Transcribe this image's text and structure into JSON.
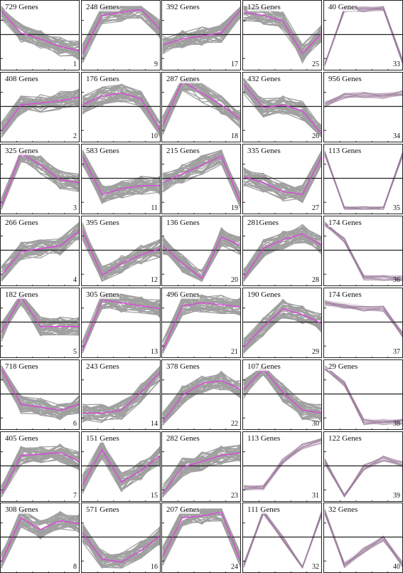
{
  "colors": {
    "cluster_line": "#a0a0a0",
    "centroid": "#e040e0",
    "density_line": "#9a7a9a",
    "axis": "#222222",
    "frame": "#222222"
  },
  "chart_data": {
    "type": "line",
    "layout_columns": 5,
    "layout_rows": 8,
    "timepoints": [
      1,
      2,
      3,
      4,
      5
    ],
    "ylim": [
      0,
      1
    ],
    "clusters": [
      {
        "id": "1",
        "genes_label": "729 Genes",
        "centroid": [
          0.92,
          0.55,
          0.45,
          0.32,
          0.25
        ],
        "style": "gray"
      },
      {
        "id": "9",
        "genes_label": "248 Genes",
        "centroid": [
          0.2,
          0.85,
          0.9,
          0.95,
          0.6
        ],
        "style": "gray"
      },
      {
        "id": "17",
        "genes_label": "392 Genes",
        "centroid": [
          0.35,
          0.45,
          0.5,
          0.55,
          0.95
        ],
        "style": "gray"
      },
      {
        "id": "25",
        "genes_label": "125 Genes",
        "centroid": [
          0.9,
          0.85,
          0.75,
          0.2,
          0.55
        ],
        "style": "gray"
      },
      {
        "id": "33",
        "genes_label": "40 Genes",
        "centroid": [
          0.0,
          0.95,
          0.95,
          0.98,
          0.05
        ],
        "style": "density"
      },
      {
        "id": "2",
        "genes_label": "408 Genes",
        "centroid": [
          0.1,
          0.55,
          0.58,
          0.62,
          0.68
        ],
        "style": "gray"
      },
      {
        "id": "10",
        "genes_label": "176 Genes",
        "centroid": [
          0.55,
          0.7,
          0.75,
          0.65,
          0.1
        ],
        "style": "gray"
      },
      {
        "id": "18",
        "genes_label": "287 Genes",
        "centroid": [
          0.2,
          0.95,
          0.75,
          0.55,
          0.3
        ],
        "style": "gray"
      },
      {
        "id": "26",
        "genes_label": "432 Genes",
        "centroid": [
          0.9,
          0.5,
          0.55,
          0.45,
          0.05
        ],
        "style": "gray"
      },
      {
        "id": "34",
        "genes_label": "956 Genes",
        "centroid": [
          0.55,
          0.7,
          0.72,
          0.7,
          0.75
        ],
        "style": "density"
      },
      {
        "id": "3",
        "genes_label": "325 Genes",
        "centroid": [
          0.05,
          0.95,
          0.75,
          0.5,
          0.45
        ],
        "style": "gray"
      },
      {
        "id": "11",
        "genes_label": "583 Genes",
        "centroid": [
          0.9,
          0.25,
          0.35,
          0.4,
          0.4
        ],
        "style": "gray"
      },
      {
        "id": "19",
        "genes_label": "215 Genes",
        "centroid": [
          0.45,
          0.6,
          0.75,
          0.9,
          0.1
        ],
        "style": "gray"
      },
      {
        "id": "27",
        "genes_label": "335 Genes",
        "centroid": [
          0.55,
          0.45,
          0.3,
          0.25,
          0.9
        ],
        "style": "gray"
      },
      {
        "id": "35",
        "genes_label": "113 Genes",
        "centroid": [
          0.95,
          0.0,
          0.0,
          0.0,
          0.95
        ],
        "style": "density"
      },
      {
        "id": "4",
        "genes_label": "266 Genes",
        "centroid": [
          0.1,
          0.5,
          0.55,
          0.6,
          0.85
        ],
        "style": "gray"
      },
      {
        "id": "12",
        "genes_label": "395 Genes",
        "centroid": [
          0.85,
          0.1,
          0.3,
          0.45,
          0.55
        ],
        "style": "gray"
      },
      {
        "id": "20",
        "genes_label": "136 Genes",
        "centroid": [
          0.6,
          0.3,
          0.05,
          0.75,
          0.6
        ],
        "style": "gray"
      },
      {
        "id": "28",
        "genes_label": "281Genes",
        "centroid": [
          0.05,
          0.55,
          0.7,
          0.8,
          0.6
        ],
        "style": "gray"
      },
      {
        "id": "36",
        "genes_label": "174 Genes",
        "centroid": [
          0.98,
          0.7,
          0.05,
          0.05,
          0.05
        ],
        "style": "density"
      },
      {
        "id": "5",
        "genes_label": "182 Genes",
        "centroid": [
          0.35,
          0.95,
          0.45,
          0.45,
          0.45
        ],
        "style": "gray"
      },
      {
        "id": "13",
        "genes_label": "305 Genes",
        "centroid": [
          0.05,
          0.9,
          0.85,
          0.8,
          0.75
        ],
        "style": "gray"
      },
      {
        "id": "21",
        "genes_label": "496 Genes",
        "centroid": [
          0.05,
          0.8,
          0.85,
          0.82,
          0.78
        ],
        "style": "gray"
      },
      {
        "id": "29",
        "genes_label": "190 Genes",
        "centroid": [
          0.1,
          0.45,
          0.75,
          0.65,
          0.5
        ],
        "style": "gray"
      },
      {
        "id": "37",
        "genes_label": "174 Genes",
        "centroid": [
          0.85,
          0.8,
          0.75,
          0.75,
          0.3
        ],
        "style": "density"
      },
      {
        "id": "6",
        "genes_label": "718 Genes",
        "centroid": [
          0.95,
          0.35,
          0.3,
          0.25,
          0.35
        ],
        "style": "gray"
      },
      {
        "id": "14",
        "genes_label": "243 Genes",
        "centroid": [
          0.2,
          0.2,
          0.25,
          0.55,
          0.9
        ],
        "style": "gray"
      },
      {
        "id": "22",
        "genes_label": "378 Genes",
        "centroid": [
          0.05,
          0.5,
          0.7,
          0.75,
          0.6
        ],
        "style": "gray"
      },
      {
        "id": "30",
        "genes_label": "107 Genes",
        "centroid": [
          0.6,
          0.95,
          0.55,
          0.25,
          0.2
        ],
        "style": "gray"
      },
      {
        "id": "38",
        "genes_label": "29 Genes",
        "centroid": [
          0.98,
          0.7,
          0.05,
          0.05,
          0.05
        ],
        "style": "density"
      },
      {
        "id": "7",
        "genes_label": "405 Genes",
        "centroid": [
          0.05,
          0.7,
          0.72,
          0.75,
          0.6
        ],
        "style": "gray"
      },
      {
        "id": "15",
        "genes_label": "151 Genes",
        "centroid": [
          0.2,
          0.8,
          0.25,
          0.45,
          0.7
        ],
        "style": "gray"
      },
      {
        "id": "23",
        "genes_label": "282 Genes",
        "centroid": [
          0.05,
          0.5,
          0.6,
          0.7,
          0.75
        ],
        "style": "gray"
      },
      {
        "id": "31",
        "genes_label": "113 Genes",
        "centroid": [
          0.15,
          0.15,
          0.6,
          0.85,
          0.95
        ],
        "style": "density"
      },
      {
        "id": "39",
        "genes_label": "122 Genes",
        "centroid": [
          0.6,
          0.0,
          0.5,
          0.65,
          0.55
        ],
        "style": "density"
      },
      {
        "id": "8",
        "genes_label": "308 Genes",
        "centroid": [
          0.1,
          0.85,
          0.65,
          0.8,
          0.75
        ],
        "style": "gray"
      },
      {
        "id": "16",
        "genes_label": "571 Genes",
        "centroid": [
          0.6,
          0.15,
          0.1,
          0.3,
          0.55
        ],
        "style": "gray"
      },
      {
        "id": "24",
        "genes_label": "207 Genes",
        "centroid": [
          0.2,
          0.85,
          0.88,
          0.95,
          0.1
        ],
        "style": "gray"
      },
      {
        "id": "32",
        "genes_label": "111 Genes",
        "centroid": [
          0.05,
          0.95,
          0.5,
          0.0,
          0.95
        ],
        "style": "density"
      },
      {
        "id": "40",
        "genes_label": "32 Genes",
        "centroid": [
          0.95,
          0.05,
          0.3,
          0.5,
          0.05
        ],
        "style": "density"
      }
    ]
  }
}
